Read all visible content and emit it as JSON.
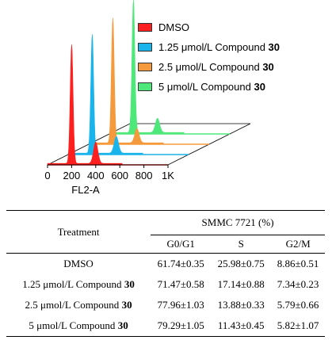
{
  "chart_data": {
    "type": "area",
    "subtype": "3d-stacked-flow-cytometry-histograms",
    "xlabel": "FL2-A",
    "xticks": [
      "0",
      "200",
      "400",
      "600",
      "800",
      "1K"
    ],
    "xlim": [
      0,
      1000
    ],
    "series": [
      {
        "name": "DMSO",
        "color": "#ff1f1f",
        "peaks": [
          {
            "x": 200,
            "height": 1.0
          },
          {
            "x": 400,
            "height": 0.18
          }
        ]
      },
      {
        "name": "1.25 μmol/L Compound 30",
        "color": "#1ab4ec",
        "peaks": [
          {
            "x": 200,
            "height": 1.0
          },
          {
            "x": 400,
            "height": 0.14
          }
        ]
      },
      {
        "name": "2.5 μmol/L Compound 30",
        "color": "#f59a3c",
        "peaks": [
          {
            "x": 200,
            "height": 1.05
          },
          {
            "x": 400,
            "height": 0.12
          }
        ]
      },
      {
        "name": "5 μmol/L Compound 30",
        "color": "#4ee87a",
        "peaks": [
          {
            "x": 200,
            "height": 1.12
          },
          {
            "x": 400,
            "height": 0.12
          }
        ]
      }
    ]
  },
  "legend": [
    {
      "prefix": "DMSO",
      "bold": "",
      "color": "#ff1f1f"
    },
    {
      "prefix": "1.25 μmol/L Compound ",
      "bold": "30",
      "color": "#1ab4ec"
    },
    {
      "prefix": "2.5 μmol/L Compound ",
      "bold": "30",
      "color": "#f59a3c"
    },
    {
      "prefix": "5 μmol/L Compound ",
      "bold": "30",
      "color": "#4ee87a"
    }
  ],
  "table": {
    "treatment_header": "Treatment",
    "group_header": "SMMC 7721 (%)",
    "columns": [
      "G0/G1",
      "S",
      "G2/M"
    ],
    "rows": [
      {
        "prefix": "DMSO",
        "bold": "",
        "values": [
          "61.74±0.35",
          "25.98±0.75",
          "8.86±0.51"
        ]
      },
      {
        "prefix": "1.25 μmol/L Compound ",
        "bold": "30",
        "values": [
          "71.47±0.58",
          "17.14±0.88",
          "7.34±0.23"
        ]
      },
      {
        "prefix": "2.5 μmol/L Compound ",
        "bold": "30",
        "values": [
          "77.96±1.03",
          "13.88±0.33",
          "5.79±0.66"
        ]
      },
      {
        "prefix": "5 μmol/L Compound ",
        "bold": "30",
        "values": [
          "79.29±1.05",
          "11.43±0.45",
          "5.82±1.07"
        ]
      }
    ]
  }
}
